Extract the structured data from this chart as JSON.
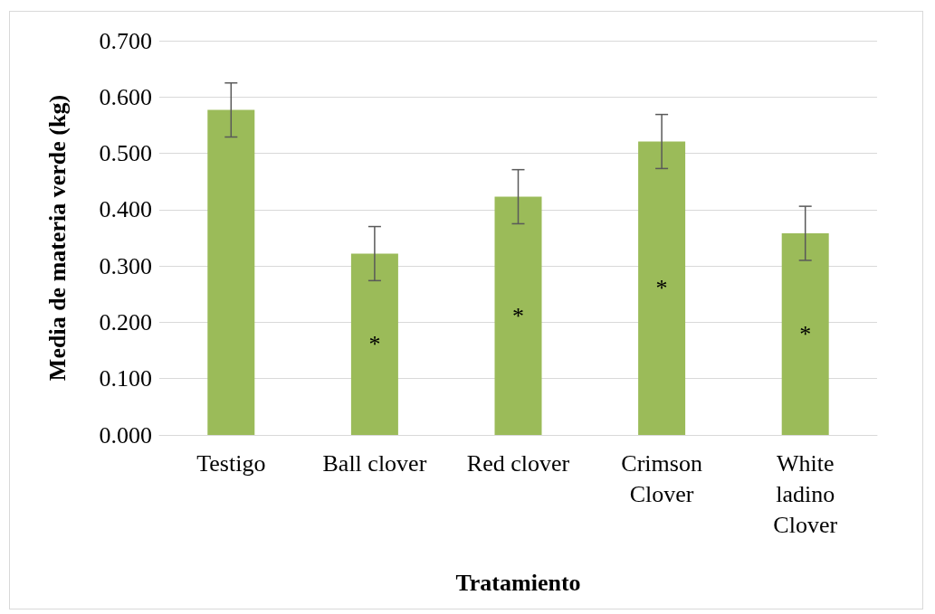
{
  "chart_data": {
    "type": "bar",
    "xlabel": "Tratamiento",
    "ylabel": "Media de materia verde (kg)",
    "categories": [
      "Testigo",
      "Ball clover",
      "Red clover",
      "Crimson\nClover",
      "White\nladino\nClover"
    ],
    "values": [
      0.577,
      0.322,
      0.423,
      0.521,
      0.358
    ],
    "errors": [
      0.048,
      0.048,
      0.048,
      0.048,
      0.048
    ],
    "color": "#9bbb59",
    "ylim": [
      0,
      0.7
    ],
    "yticks": [
      {
        "value": 0,
        "label": "0.000"
      },
      {
        "value": 0.1,
        "label": "0.100"
      },
      {
        "value": 0.2,
        "label": "0.200"
      },
      {
        "value": 0.3,
        "label": "0.300"
      },
      {
        "value": 0.4,
        "label": "0.400"
      },
      {
        "value": 0.5,
        "label": "0.500"
      },
      {
        "value": 0.6,
        "label": "0.600"
      },
      {
        "value": 0.7,
        "label": "0.700"
      }
    ],
    "grid": "y",
    "annotations": [
      "*",
      "*",
      "*",
      "*"
    ]
  }
}
